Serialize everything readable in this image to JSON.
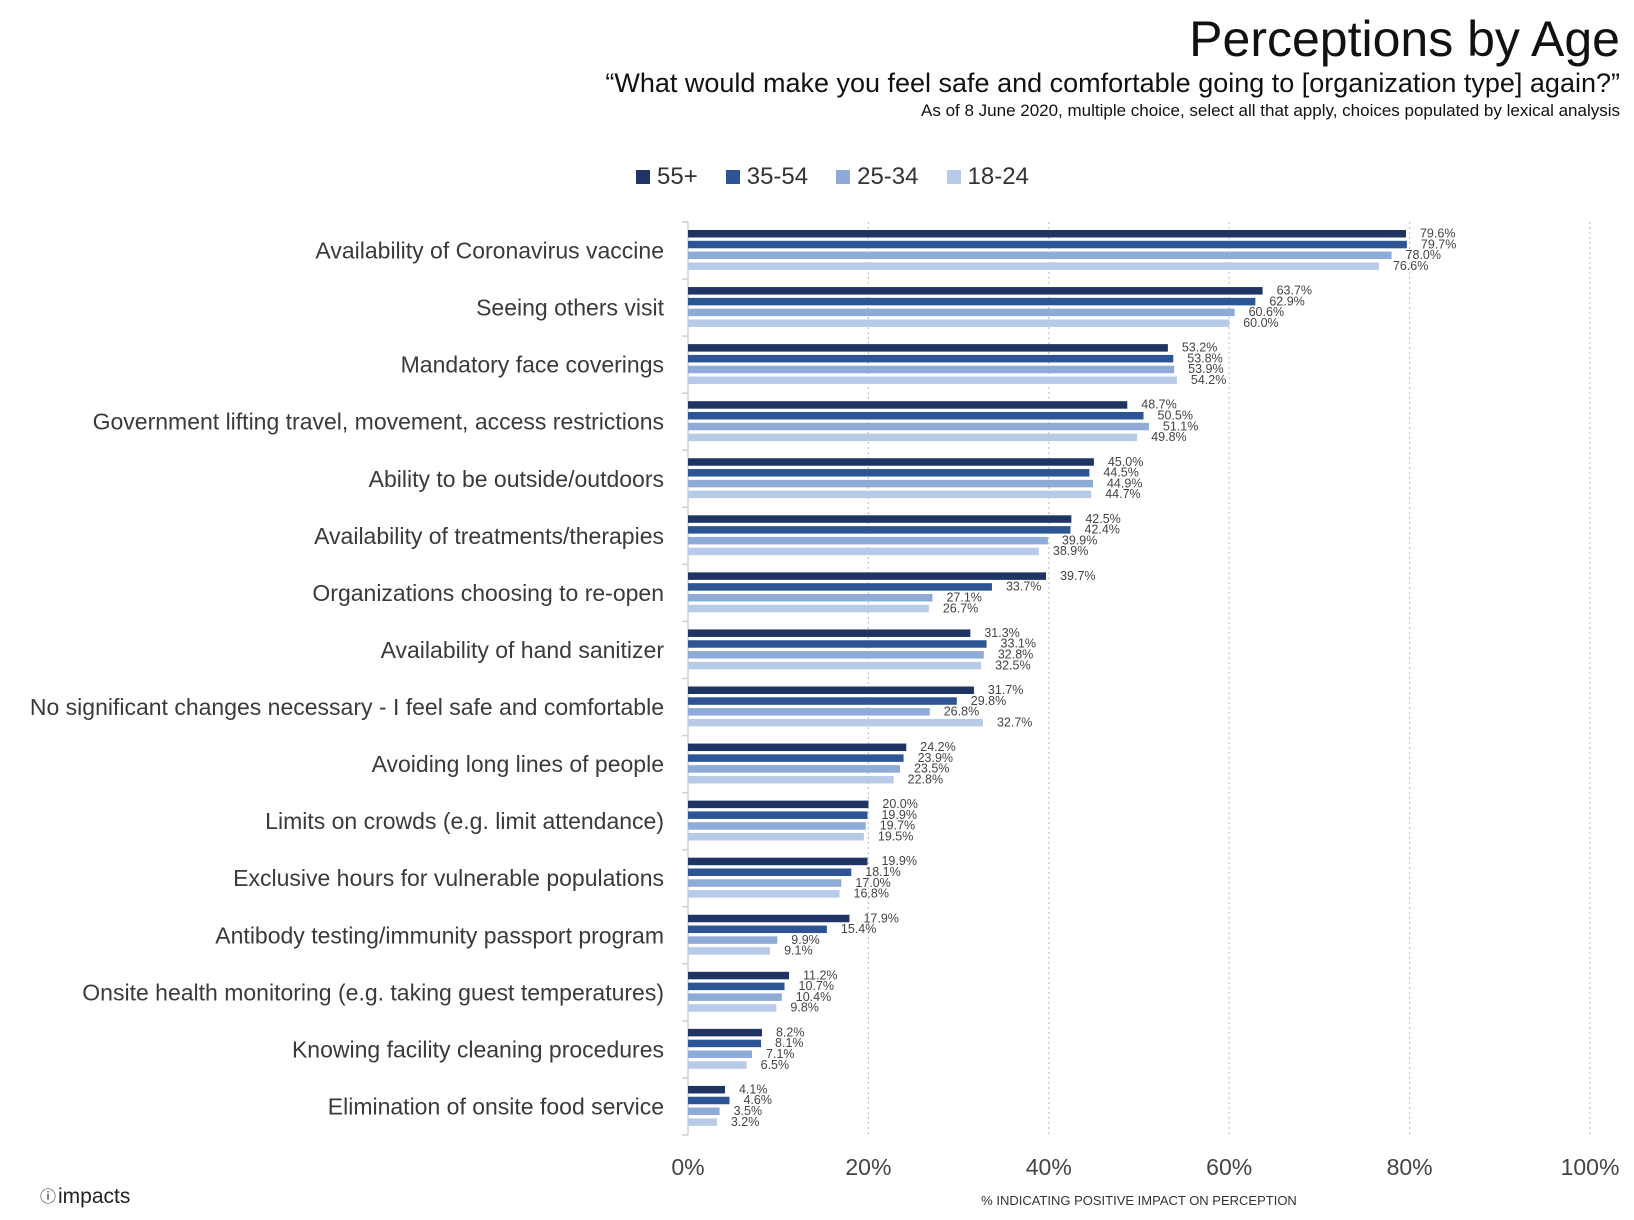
{
  "header": {
    "title": "Perceptions by Age",
    "subtitle": "“What would make you feel safe and comfortable going to [organization type] again?”",
    "note": "As of 8 June 2020, multiple choice, select all that apply, choices populated by lexical analysis"
  },
  "footer": {
    "logo_text": "impacts",
    "logo_icon": "info-circle-icon"
  },
  "colors": {
    "55+": "#1f3463",
    "35-54": "#2d5595",
    "25-34": "#8eaad6",
    "18-24": "#b7cbe8"
  },
  "chart_data": {
    "type": "bar",
    "orientation": "horizontal",
    "xlabel": "% INDICATING POSITIVE IMPACT ON PERCEPTION",
    "xlim": [
      0,
      100
    ],
    "xticks": [
      "0%",
      "20%",
      "40%",
      "60%",
      "80%",
      "100%"
    ],
    "grid": "vertical dotted",
    "legend_position": "top",
    "categories": [
      "Availability of Coronavirus vaccine",
      "Seeing others visit",
      "Mandatory face coverings",
      "Government lifting travel, movement, access restrictions",
      "Ability to be outside/outdoors",
      "Availability of treatments/therapies",
      "Organizations choosing to re-open",
      "Availability of hand sanitizer",
      "No significant changes necessary - I feel safe and comfortable",
      "Avoiding long lines of people",
      "Limits on crowds (e.g. limit attendance)",
      "Exclusive hours for vulnerable populations",
      "Antibody testing/immunity passport program",
      "Onsite health monitoring (e.g. taking guest temperatures)",
      "Knowing facility cleaning procedures",
      "Elimination of onsite food service"
    ],
    "series": [
      {
        "name": "55+",
        "values": [
          79.6,
          63.7,
          53.2,
          48.7,
          45.0,
          42.5,
          39.7,
          31.3,
          31.7,
          24.2,
          20.0,
          19.9,
          17.9,
          11.2,
          8.2,
          4.1
        ]
      },
      {
        "name": "35-54",
        "values": [
          79.7,
          62.9,
          53.8,
          50.5,
          44.5,
          42.4,
          33.7,
          33.1,
          29.8,
          23.9,
          19.9,
          18.1,
          15.4,
          10.7,
          8.1,
          4.6
        ]
      },
      {
        "name": "25-34",
        "values": [
          78.0,
          60.6,
          53.9,
          51.1,
          44.9,
          39.9,
          27.1,
          32.8,
          26.8,
          23.5,
          19.7,
          17.0,
          9.9,
          10.4,
          7.1,
          3.5
        ]
      },
      {
        "name": "18-24",
        "values": [
          76.6,
          60.0,
          54.2,
          49.8,
          44.7,
          38.9,
          26.7,
          32.5,
          32.7,
          22.8,
          19.5,
          16.8,
          9.1,
          9.8,
          6.5,
          3.2
        ]
      }
    ]
  }
}
